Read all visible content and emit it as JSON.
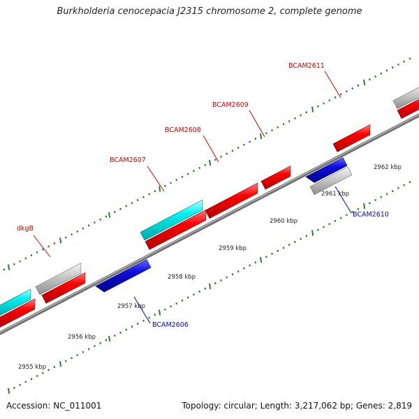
{
  "title": "Burkholderia cenocepacia J2315 chromosome 2, complete genome",
  "footer": {
    "accession": "Accession: NC_011001",
    "summary": "Topology: circular; Length: 3,217,062 bp; Genes: 2,819"
  },
  "colors": {
    "backbone": "#8c8c8c",
    "tick": "#2e7d2e",
    "forward_label": "#cc0000",
    "reverse_label": "#0000cc",
    "red_feature": "#ff0000",
    "blue_feature": "#1010e0",
    "cyan_feature": "#00e8e8",
    "gray_feature": "#c8c8c8"
  },
  "scale_labels": [
    "2955 kbp",
    "2956 kbp",
    "2957 kbp",
    "2958 kbp",
    "2959 kbp",
    "2960 kbp",
    "2961 kbp",
    "2962 kbp"
  ],
  "gene_labels": {
    "forward": [
      "dkgB",
      "BCAM2607",
      "BCAM2608",
      "BCAM2609",
      "BCAM2611"
    ],
    "reverse": [
      "BCAM2606",
      "BCAM2610"
    ]
  }
}
